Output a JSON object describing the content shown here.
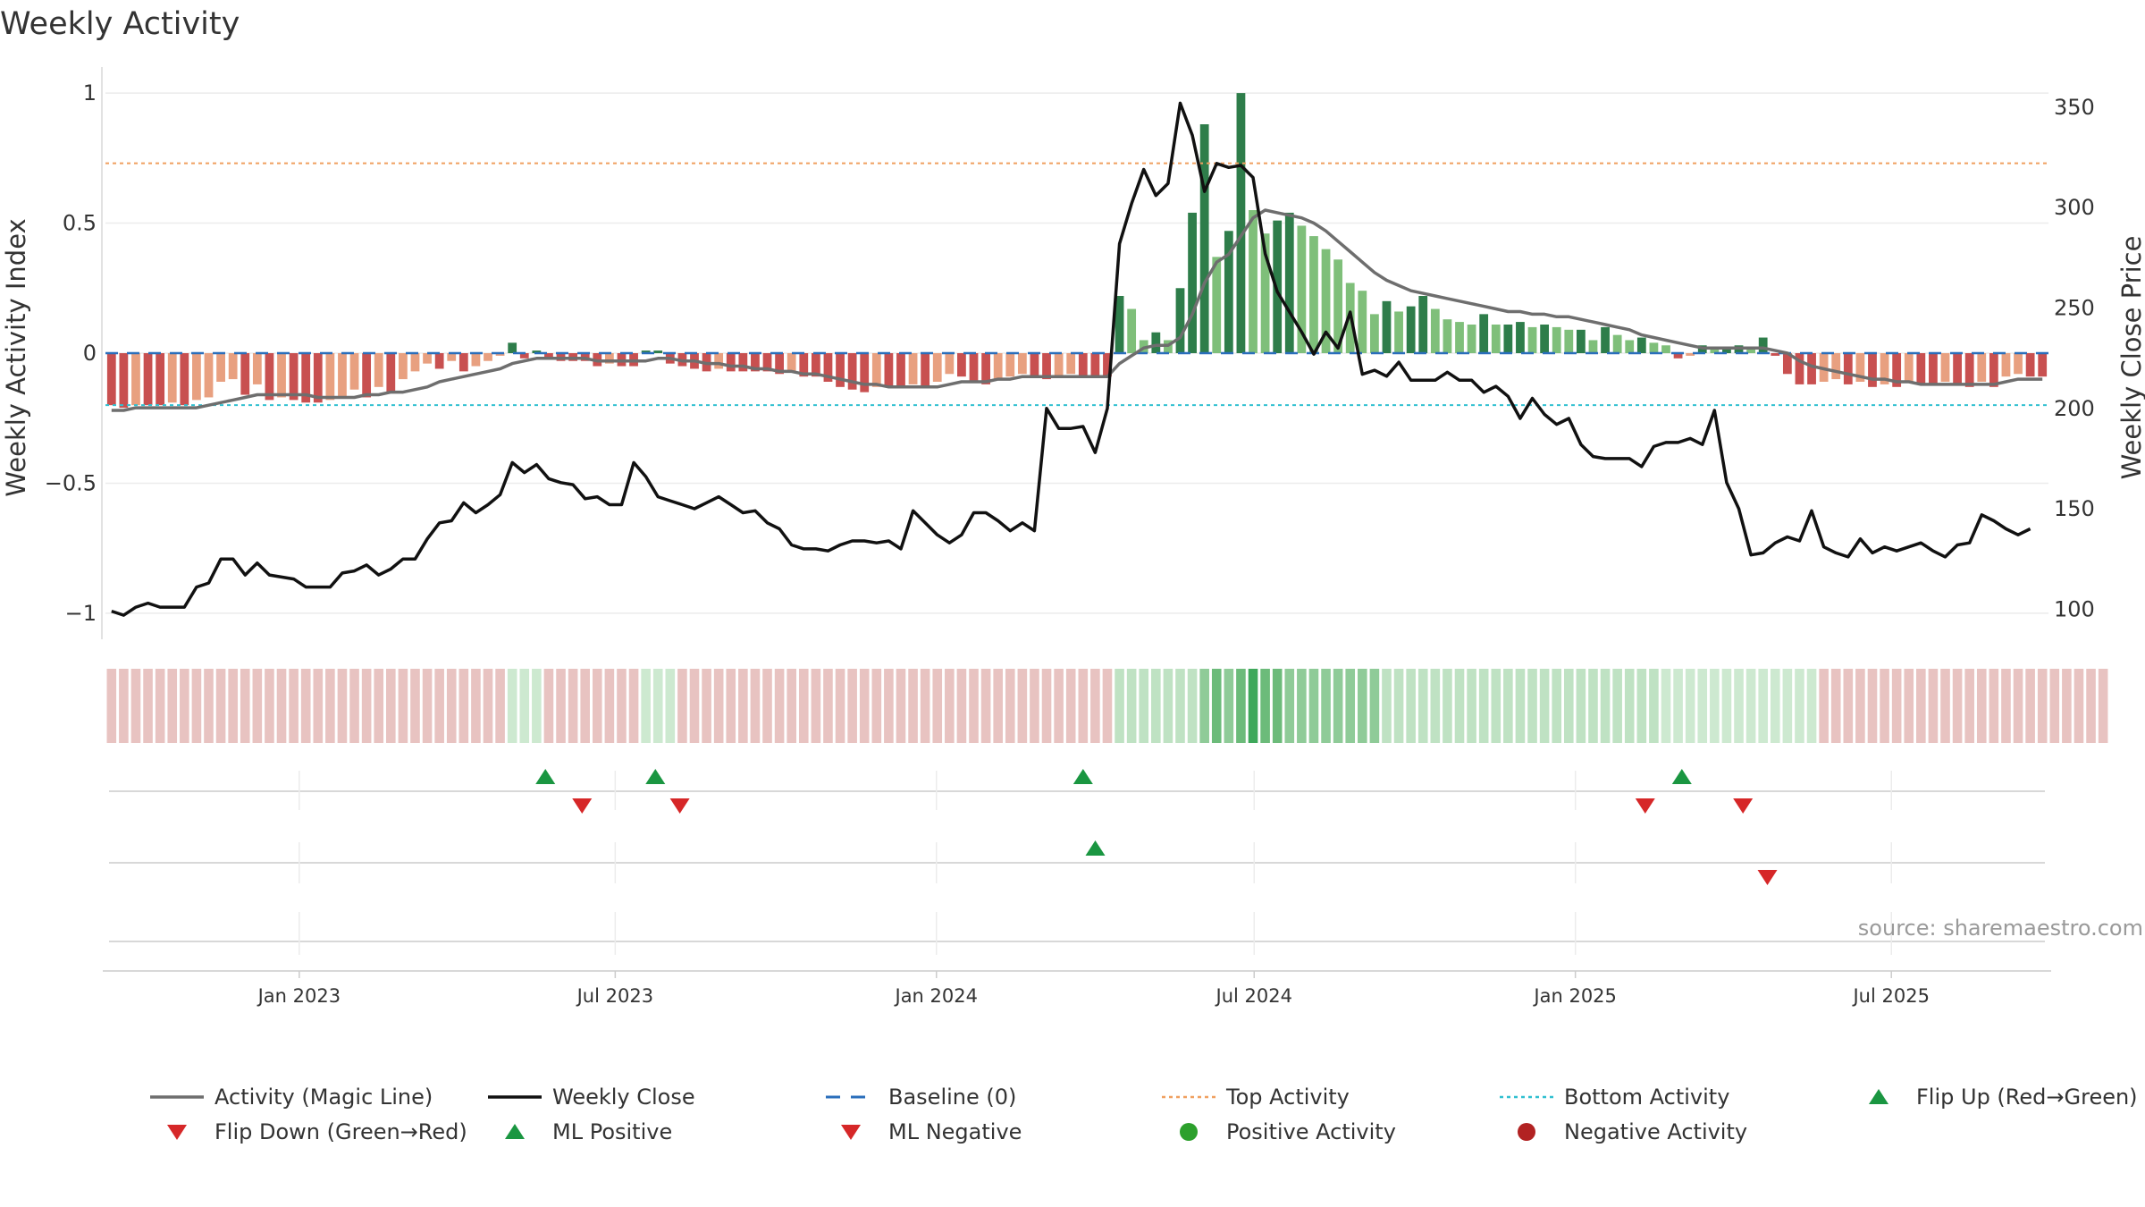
{
  "chart_data": {
    "type": "bar",
    "title": "Weekly Activity",
    "ylabel": "Weekly Activity Index",
    "y2label": "Weekly Close Price",
    "source": "source: sharemaestro.com",
    "ylim": [
      -1.1,
      1.1
    ],
    "y2lim": [
      85,
      370
    ],
    "y_ticks": [
      {
        "v": 1,
        "label": "1"
      },
      {
        "v": 0.5,
        "label": "0.5"
      },
      {
        "v": 0,
        "label": "0"
      },
      {
        "v": -0.5,
        "label": "−0.5"
      },
      {
        "v": -1,
        "label": "−1"
      }
    ],
    "y2_ticks": [
      {
        "v": 350,
        "label": "350"
      },
      {
        "v": 300,
        "label": "300"
      },
      {
        "v": 250,
        "label": "250"
      },
      {
        "v": 200,
        "label": "200"
      },
      {
        "v": 150,
        "label": "150"
      },
      {
        "v": 100,
        "label": "100"
      }
    ],
    "x_start": "2022-09-12",
    "x_end": "2025-09-29",
    "x_ticks": [
      {
        "date": "2023-01-01",
        "label": "Jan 2023"
      },
      {
        "date": "2023-07-01",
        "label": "Jul 2023"
      },
      {
        "date": "2024-01-01",
        "label": "Jan 2024"
      },
      {
        "date": "2024-07-01",
        "label": "Jul 2024"
      },
      {
        "date": "2025-01-01",
        "label": "Jan 2025"
      },
      {
        "date": "2025-07-01",
        "label": "Jul 2025"
      }
    ],
    "top_activity": 0.73,
    "bottom_activity": -0.2,
    "baseline": 0,
    "colors": {
      "pos_dark": "#2e7d4a",
      "pos_light": "#7fbf7a",
      "neg_dark": "#c85050",
      "neg_light": "#e8a080",
      "magic_line": "#6e6e6e",
      "close": "#111111",
      "baseline": "#2a6ebb",
      "top": "#f0a060",
      "bottom": "#30c0d0",
      "flip_up": "#1a9641",
      "flip_down": "#d62728",
      "pos_dot": "#2ca02c",
      "neg_dot": "#b22222"
    },
    "series": [
      {
        "name": "Weekly Activity Index",
        "values": [
          -0.2,
          -0.21,
          -0.2,
          -0.2,
          -0.2,
          -0.19,
          -0.2,
          -0.18,
          -0.17,
          -0.11,
          -0.1,
          -0.16,
          -0.12,
          -0.18,
          -0.17,
          -0.18,
          -0.19,
          -0.19,
          -0.18,
          -0.17,
          -0.14,
          -0.17,
          -0.13,
          -0.15,
          -0.1,
          -0.07,
          -0.04,
          -0.06,
          -0.03,
          -0.07,
          -0.05,
          -0.03,
          -0.01,
          0.04,
          -0.02,
          0.01,
          -0.02,
          -0.03,
          -0.03,
          -0.03,
          -0.05,
          -0.04,
          -0.05,
          -0.05,
          0.01,
          0.01,
          -0.04,
          -0.05,
          -0.06,
          -0.07,
          -0.06,
          -0.07,
          -0.07,
          -0.07,
          -0.07,
          -0.08,
          -0.07,
          -0.09,
          -0.09,
          -0.11,
          -0.13,
          -0.14,
          -0.15,
          -0.13,
          -0.13,
          -0.13,
          -0.12,
          -0.13,
          -0.11,
          -0.08,
          -0.09,
          -0.11,
          -0.12,
          -0.1,
          -0.09,
          -0.08,
          -0.09,
          -0.1,
          -0.09,
          -0.08,
          -0.09,
          -0.09,
          -0.09,
          0.22,
          0.17,
          0.05,
          0.08,
          0.05,
          0.25,
          0.54,
          0.88,
          0.37,
          0.47,
          1.0,
          0.55,
          0.46,
          0.51,
          0.54,
          0.49,
          0.45,
          0.4,
          0.36,
          0.27,
          0.24,
          0.15,
          0.2,
          0.16,
          0.18,
          0.22,
          0.17,
          0.13,
          0.12,
          0.11,
          0.15,
          0.11,
          0.11,
          0.12,
          0.1,
          0.11,
          0.1,
          0.09,
          0.09,
          0.05,
          0.1,
          0.07,
          0.05,
          0.06,
          0.04,
          0.03,
          -0.02,
          -0.01,
          0.03,
          0.02,
          0.02,
          0.03,
          0.02,
          0.06,
          -0.01,
          -0.08,
          -0.12,
          -0.12,
          -0.11,
          -0.1,
          -0.12,
          -0.11,
          -0.13,
          -0.12,
          -0.13,
          -0.11,
          -0.12,
          -0.12,
          -0.11,
          -0.12,
          -0.13,
          -0.11,
          -0.13,
          -0.09,
          -0.08,
          -0.09,
          -0.09
        ]
      },
      {
        "name": "Activity (Magic Line)",
        "values": [
          -0.22,
          -0.22,
          -0.21,
          -0.21,
          -0.21,
          -0.21,
          -0.21,
          -0.21,
          -0.2,
          -0.19,
          -0.18,
          -0.17,
          -0.16,
          -0.16,
          -0.16,
          -0.16,
          -0.16,
          -0.17,
          -0.17,
          -0.17,
          -0.17,
          -0.16,
          -0.16,
          -0.15,
          -0.15,
          -0.14,
          -0.13,
          -0.11,
          -0.1,
          -0.09,
          -0.08,
          -0.07,
          -0.06,
          -0.04,
          -0.03,
          -0.02,
          -0.02,
          -0.02,
          -0.02,
          -0.02,
          -0.03,
          -0.03,
          -0.03,
          -0.03,
          -0.03,
          -0.02,
          -0.02,
          -0.03,
          -0.03,
          -0.04,
          -0.04,
          -0.05,
          -0.05,
          -0.06,
          -0.06,
          -0.07,
          -0.07,
          -0.08,
          -0.08,
          -0.09,
          -0.1,
          -0.11,
          -0.12,
          -0.12,
          -0.13,
          -0.13,
          -0.13,
          -0.13,
          -0.13,
          -0.12,
          -0.11,
          -0.11,
          -0.11,
          -0.1,
          -0.1,
          -0.09,
          -0.09,
          -0.09,
          -0.09,
          -0.09,
          -0.09,
          -0.09,
          -0.09,
          -0.04,
          -0.01,
          0.02,
          0.03,
          0.03,
          0.06,
          0.15,
          0.27,
          0.35,
          0.38,
          0.45,
          0.52,
          0.55,
          0.54,
          0.53,
          0.52,
          0.5,
          0.47,
          0.43,
          0.39,
          0.35,
          0.31,
          0.28,
          0.26,
          0.24,
          0.23,
          0.22,
          0.21,
          0.2,
          0.19,
          0.18,
          0.17,
          0.16,
          0.16,
          0.15,
          0.15,
          0.14,
          0.14,
          0.13,
          0.12,
          0.11,
          0.1,
          0.09,
          0.07,
          0.06,
          0.05,
          0.04,
          0.03,
          0.02,
          0.02,
          0.02,
          0.02,
          0.02,
          0.02,
          0.01,
          0.0,
          -0.03,
          -0.05,
          -0.06,
          -0.07,
          -0.08,
          -0.09,
          -0.1,
          -0.1,
          -0.11,
          -0.11,
          -0.12,
          -0.12,
          -0.12,
          -0.12,
          -0.12,
          -0.12,
          -0.12,
          -0.11,
          -0.1,
          -0.1,
          -0.1
        ]
      },
      {
        "name": "Weekly Close",
        "values": [
          99,
          97,
          101,
          103,
          101,
          101,
          101,
          111,
          113,
          125,
          125,
          117,
          123,
          117,
          116,
          115,
          111,
          111,
          111,
          118,
          119,
          122,
          117,
          120,
          125,
          125,
          135,
          143,
          144,
          153,
          148,
          152,
          157,
          173,
          168,
          172,
          165,
          163,
          162,
          155,
          156,
          152,
          152,
          173,
          166,
          156,
          154,
          152,
          150,
          153,
          156,
          152,
          148,
          149,
          143,
          140,
          132,
          130,
          130,
          129,
          132,
          134,
          134,
          133,
          134,
          130,
          149,
          143,
          137,
          133,
          137,
          148,
          148,
          144,
          139,
          143,
          139,
          200,
          190,
          190,
          191,
          178,
          200,
          282,
          302,
          319,
          306,
          312,
          352,
          336,
          308,
          322,
          320,
          321,
          315,
          277,
          258,
          248,
          238,
          227,
          238,
          230,
          248,
          217,
          219,
          216,
          223,
          214,
          214,
          214,
          218,
          214,
          214,
          208,
          211,
          206,
          195,
          205,
          197,
          192,
          195,
          182,
          176,
          175,
          175,
          175,
          171,
          181,
          183,
          183,
          185,
          182,
          199,
          163,
          150,
          127,
          128,
          133,
          136,
          134,
          149,
          131,
          128,
          126,
          135,
          128,
          131,
          129,
          131,
          133,
          129,
          126,
          132,
          133,
          147,
          144,
          140,
          137,
          140
        ]
      }
    ],
    "heat_strip": [
      -1,
      -1,
      -1,
      -1,
      -1,
      -1,
      -1,
      -1,
      -1,
      -1,
      -1,
      -1,
      -1,
      -1,
      -1,
      -1,
      -1,
      -1,
      -1,
      -1,
      -1,
      -1,
      -1,
      -1,
      -1,
      -1,
      -1,
      -1,
      -1,
      -1,
      -1,
      -1,
      -1,
      1,
      1,
      1,
      -1,
      -1,
      -1,
      -1,
      -1,
      -1,
      -1,
      -1,
      1,
      1,
      1,
      -1,
      -1,
      -1,
      -1,
      -1,
      -1,
      -1,
      -1,
      -1,
      -1,
      -1,
      -1,
      -1,
      -1,
      -1,
      -1,
      -1,
      -1,
      -1,
      -1,
      -1,
      -1,
      -1,
      -1,
      -1,
      -1,
      -1,
      -1,
      -1,
      -1,
      -1,
      -1,
      -1,
      -1,
      -1,
      -1,
      2,
      2,
      2,
      2,
      2,
      2,
      2,
      3,
      4,
      3,
      4,
      5,
      4,
      4,
      3,
      3,
      3,
      3,
      3,
      3,
      3,
      3,
      2,
      2,
      2,
      2,
      2,
      2,
      2,
      2,
      2,
      2,
      2,
      2,
      2,
      2,
      2,
      2,
      2,
      2,
      2,
      2,
      2,
      2,
      2,
      1,
      1,
      1,
      1,
      1,
      1,
      1,
      1,
      1,
      1,
      1,
      1,
      1,
      -1,
      -1,
      -1,
      -1,
      -1,
      -1,
      -1,
      -1,
      -1,
      -1,
      -1,
      -1,
      -1,
      -1,
      -1,
      -1,
      -1,
      -1,
      -1,
      -1,
      -1,
      -1,
      -1,
      -1
    ],
    "flip_up": [
      "2023-05-22",
      "2023-07-24",
      "2024-03-25",
      "2025-03-03"
    ],
    "flip_down": [
      "2023-06-12",
      "2023-08-07",
      "2025-02-10",
      "2025-04-07"
    ],
    "ml_positive": [
      "2024-04-01"
    ],
    "ml_negative": [
      "2025-04-21"
    ],
    "legend": [
      {
        "label": "Activity (Magic Line)",
        "symbol": "line",
        "color": "#6e6e6e"
      },
      {
        "label": "Weekly Close",
        "symbol": "line",
        "color": "#111111"
      },
      {
        "label": "Baseline (0)",
        "symbol": "dash",
        "color": "#2a6ebb"
      },
      {
        "label": "Top Activity",
        "symbol": "dot",
        "color": "#f0a060"
      },
      {
        "label": "Bottom Activity",
        "symbol": "dot",
        "color": "#30c0d0"
      },
      {
        "label": "Flip Up (Red→Green)",
        "symbol": "tri-up",
        "color": "#1a9641"
      },
      {
        "label": "Flip Down (Green→Red)",
        "symbol": "tri-down",
        "color": "#d62728"
      },
      {
        "label": "ML Positive",
        "symbol": "tri-up",
        "color": "#1a9641"
      },
      {
        "label": "ML Negative",
        "symbol": "tri-down",
        "color": "#d62728"
      },
      {
        "label": "Positive Activity",
        "symbol": "circle",
        "color": "#2ca02c"
      },
      {
        "label": "Negative Activity",
        "symbol": "circle",
        "color": "#b22222"
      }
    ]
  }
}
